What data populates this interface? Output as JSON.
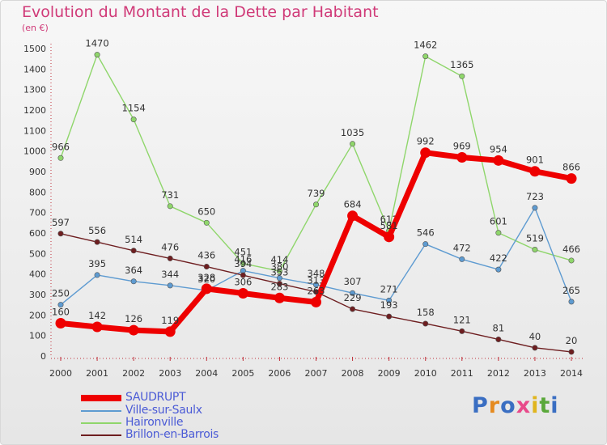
{
  "title": "Evolution du Montant de la Dette par Habitant",
  "subtitle": "(en €)",
  "logo": {
    "text": "Proxiti",
    "letter_colors": [
      "#3a6ec2",
      "#e58a1f",
      "#3a6ec2",
      "#e84a8a",
      "#e0b51e",
      "#5aa83a",
      "#3a6ec2"
    ]
  },
  "chart_data": {
    "type": "line",
    "x": [
      2000,
      2001,
      2002,
      2003,
      2004,
      2005,
      2006,
      2007,
      2008,
      2009,
      2010,
      2011,
      2012,
      2013,
      2014
    ],
    "x_ticks": [
      "2000",
      "2001",
      "2002",
      "2003",
      "2004",
      "2005",
      "2006",
      "2007",
      "2008",
      "2009",
      "2010",
      "2011",
      "2012",
      "2013",
      "2014"
    ],
    "ylim": [
      0,
      1500
    ],
    "y_ticks": [
      "0",
      "100",
      "200",
      "300",
      "400",
      "500",
      "600",
      "700",
      "800",
      "900",
      "1000",
      "1100",
      "1200",
      "1300",
      "1400",
      "1500"
    ],
    "grid": false,
    "legend_position": "bottom-left",
    "series": [
      {
        "name": "Haironville",
        "color": "#8fd66b",
        "values": [
          966,
          1470,
          1154,
          731,
          650,
          451,
          414,
          739,
          1035,
          611,
          1462,
          1365,
          601,
          519,
          466
        ]
      },
      {
        "name": "Ville-sur-Saulx",
        "color": "#5e9bd1",
        "values": [
          250,
          395,
          364,
          344,
          320,
          416,
          380,
          348,
          307,
          271,
          546,
          472,
          422,
          723,
          265
        ]
      },
      {
        "name": "Brillon-en-Barrois",
        "color": "#6e1e20",
        "values": [
          597,
          556,
          514,
          476,
          436,
          394,
          353,
          313,
          229,
          193,
          158,
          121,
          81,
          40,
          20
        ]
      },
      {
        "name": "SAUDRUPT",
        "color": "#ee0000",
        "values": [
          160,
          142,
          126,
          119,
          328,
          306,
          283,
          263,
          684,
          581,
          992,
          969,
          954,
          901,
          866
        ]
      }
    ]
  },
  "legend": [
    {
      "name": "SAUDRUPT",
      "color": "#ee0000"
    },
    {
      "name": "Ville-sur-Saulx",
      "color": "#5e9bd1"
    },
    {
      "name": "Haironville",
      "color": "#8fd66b"
    },
    {
      "name": "Brillon-en-Barrois",
      "color": "#6e1e20"
    }
  ]
}
